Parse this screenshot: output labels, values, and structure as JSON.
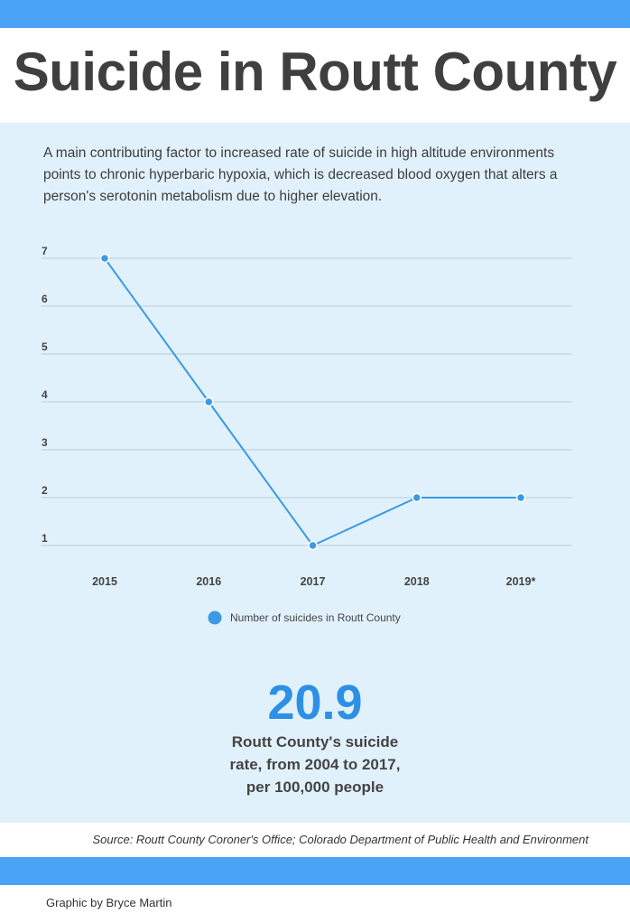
{
  "title": "Suicide in Routt County",
  "intro": "A main contributing factor to increased rate of suicide in high altitude environments points to chronic hyperbaric hypoxia, which is decreased blood oxygen that alters a person's serotonin metabolism due to higher elevation.",
  "chart_data": {
    "type": "line",
    "categories": [
      "2015",
      "2016",
      "2017",
      "2018",
      "2019*"
    ],
    "series": [
      {
        "name": "Number of suicides in Routt County",
        "values": [
          7,
          4,
          1,
          2,
          2
        ],
        "color": "#3a9ae6"
      }
    ],
    "y_ticks": [
      "1",
      "2",
      "3",
      "4",
      "5",
      "6",
      "7"
    ],
    "ylim": [
      1,
      7
    ],
    "grid": true,
    "legend_position": "bottom-center"
  },
  "stat": {
    "value": "20.9",
    "caption_lines": [
      "Routt County's suicide",
      "rate, from 2004 to 2017,",
      "per 100,000 people"
    ]
  },
  "source": "Source: Routt County Coroner's Office; Colorado Department of Public Health and Environment",
  "credit": "Graphic by Bryce Martin",
  "colors": {
    "accent_bar": "#4aa3f7",
    "panel_background": "#e1f1fc",
    "stat_color": "#2d8fe6",
    "title_color": "#3f3f3f"
  }
}
